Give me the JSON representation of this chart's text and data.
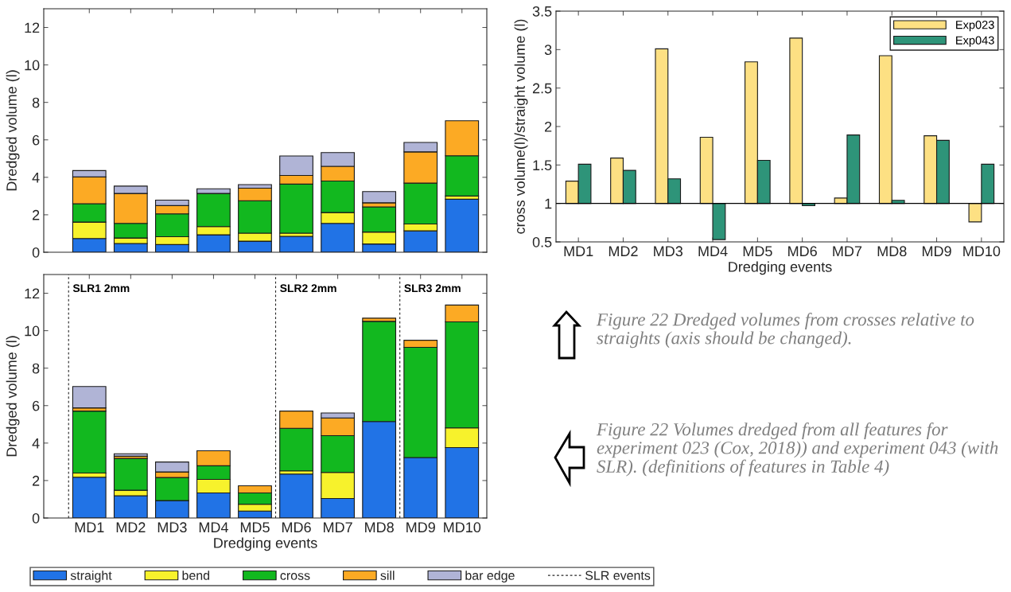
{
  "chart_data": [
    {
      "type": "bar",
      "stacked": true,
      "ylabel": "Dredged volume (l)",
      "categories": [
        null,
        null,
        null,
        null,
        null,
        null,
        null,
        null,
        null,
        null
      ],
      "tick_labels": "y",
      "ylim": [
        0,
        13
      ],
      "yticks": [
        0,
        2,
        4,
        6,
        8,
        10,
        12
      ],
      "series": [
        {
          "color": "#2173e6",
          "values": [
            0.73,
            0.47,
            0.41,
            0.93,
            0.59,
            0.85,
            1.54,
            0.44,
            1.14,
            2.83
          ]
        },
        {
          "color": "#f7f22c",
          "values": [
            0.88,
            0.29,
            0.42,
            0.44,
            0.43,
            0.17,
            0.58,
            0.64,
            0.37,
            0.17
          ]
        },
        {
          "color": "#12b81f",
          "values": [
            0.98,
            0.78,
            1.22,
            1.77,
            1.73,
            2.62,
            1.68,
            1.34,
            2.18,
            2.15
          ]
        },
        {
          "color": "#fcaa24",
          "values": [
            1.43,
            1.6,
            0.44,
            null,
            0.67,
            0.46,
            0.79,
            0.22,
            1.67,
            1.87
          ]
        },
        {
          "color": "#b0b4d6",
          "values": [
            0.34,
            0.39,
            0.29,
            0.25,
            0.19,
            1.04,
            0.73,
            0.6,
            0.5,
            null
          ]
        }
      ]
    },
    {
      "type": "bar",
      "ylabel": "cross volume(l)/straight volume (l)",
      "xlabel": "Dredging events",
      "categories": [
        "MD1",
        "MD2",
        "MD3",
        "MD4",
        "MD5",
        "MD6",
        "MD7",
        "MD8",
        "MD9",
        "MD10"
      ],
      "legend": "top right",
      "ylim": [
        0.5,
        3.5
      ],
      "yticks": [
        0.5,
        1,
        1.5,
        2,
        2.5,
        3,
        3.5
      ],
      "ref_lines": [
        {
          "axis": "y",
          "value": 1,
          "color": "#000000"
        }
      ],
      "series": [
        {
          "name": "Exp023",
          "color": "#fde083",
          "base": [
            1,
            1,
            1,
            1,
            1,
            1,
            1,
            1,
            1,
            1
          ],
          "values": [
            0.29,
            0.59,
            2.01,
            0.86,
            1.84,
            2.15,
            0.07,
            1.92,
            0.88,
            -0.24
          ]
        },
        {
          "name": "Exp043",
          "color": "#2e9479",
          "base": [
            1,
            1,
            1,
            1,
            1,
            1,
            1,
            1,
            1,
            1
          ],
          "values": [
            0.51,
            0.43,
            0.32,
            -0.47,
            0.56,
            -0.03,
            0.89,
            0.04,
            0.82,
            0.51
          ]
        }
      ],
      "annotations": [
        "Figure 22 Dredged volumes from crosses relative to straights (axis should be changed).",
        "Figure 22 Volumes dredged from all features for experiment 023 (Cox, 2018)) and experiment 043 (with SLR). (definitions of features in Table 4)"
      ]
    },
    {
      "type": "bar",
      "stacked": true,
      "ylabel": "Dredged volume (l)",
      "xlabel": "Dredging events",
      "categories": [
        "MD1",
        "MD2",
        "MD3",
        "MD4",
        "MD5",
        "MD6",
        "MD7",
        "MD8",
        "MD9",
        "MD10"
      ],
      "legend": "bottom",
      "ylim": [
        0,
        13
      ],
      "yticks": [
        0,
        2,
        4,
        6,
        8,
        10,
        12
      ],
      "series": [
        {
          "name": "straight",
          "color": "#2173e6",
          "values": [
            2.18,
            1.19,
            0.93,
            1.34,
            0.37,
            2.35,
            1.04,
            5.15,
            3.23,
            3.76
          ]
        },
        {
          "name": "bend",
          "color": "#f7f22c",
          "values": [
            0.22,
            0.29,
            null,
            0.72,
            0.36,
            0.17,
            1.39,
            null,
            null,
            1.05
          ]
        },
        {
          "name": "cross",
          "color": "#12b81f",
          "values": [
            3.31,
            1.7,
            1.23,
            0.73,
            0.61,
            2.27,
            1.97,
            5.35,
            5.88,
            5.66
          ]
        },
        {
          "name": "sill",
          "color": "#fcaa24",
          "values": [
            0.17,
            0.12,
            0.3,
            0.8,
            0.38,
            0.92,
            0.94,
            0.17,
            0.38,
            0.9
          ]
        },
        {
          "name": "bar edge",
          "color": "#b0b4d6",
          "values": [
            1.14,
            0.13,
            0.53,
            null,
            null,
            null,
            0.27,
            null,
            null,
            null
          ]
        }
      ],
      "annotations": [
        "SLR events",
        "SLR1 2mm",
        "SLR2 2mm",
        "SLR3 2mm"
      ]
    }
  ]
}
